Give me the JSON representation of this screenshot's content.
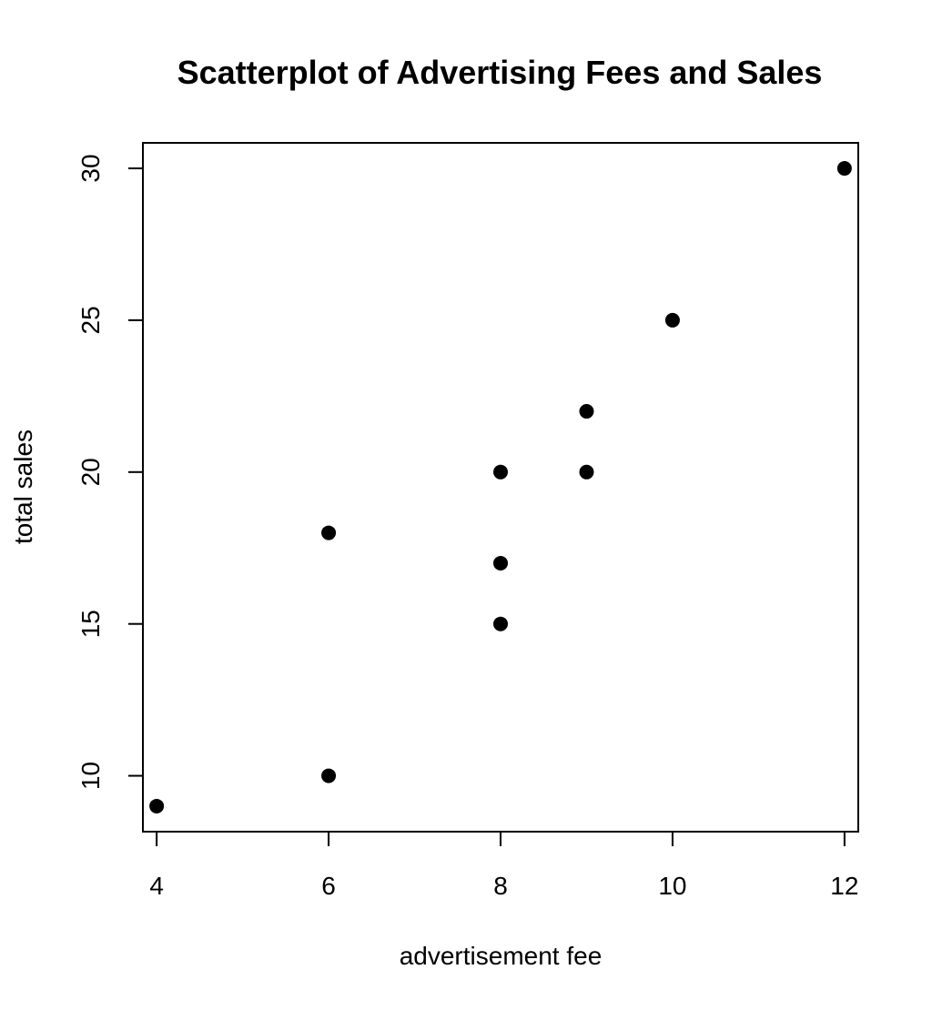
{
  "chart_data": {
    "type": "scatter",
    "title": "Scatterplot of Advertising Fees and Sales",
    "xlabel": "advertisement fee",
    "ylabel": "total sales",
    "x_ticks": [
      4,
      6,
      8,
      10,
      12
    ],
    "y_ticks": [
      10,
      15,
      20,
      25,
      30
    ],
    "xlim": [
      3.84,
      12.16
    ],
    "ylim": [
      8.16,
      30.84
    ],
    "grid": false,
    "legend": "none",
    "point_color": "#000000",
    "points": [
      {
        "x": 4,
        "y": 9
      },
      {
        "x": 6,
        "y": 10
      },
      {
        "x": 6,
        "y": 18
      },
      {
        "x": 8,
        "y": 15
      },
      {
        "x": 8,
        "y": 17
      },
      {
        "x": 8,
        "y": 20
      },
      {
        "x": 9,
        "y": 20
      },
      {
        "x": 9,
        "y": 22
      },
      {
        "x": 10,
        "y": 25
      },
      {
        "x": 12,
        "y": 30
      }
    ]
  }
}
